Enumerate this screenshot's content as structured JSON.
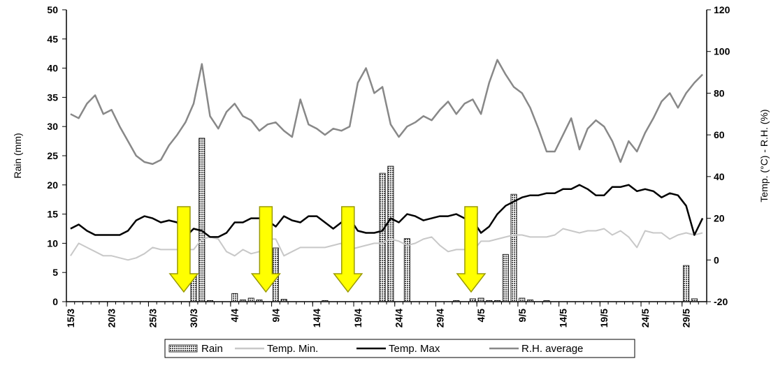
{
  "chart_data": {
    "type": "bar+line",
    "x_tick_labels": [
      "15/3",
      "20/3",
      "25/3",
      "30/3",
      "4/4",
      "9/4",
      "14/4",
      "19/4",
      "24/4",
      "29/4",
      "4/5",
      "9/5",
      "14/5",
      "19/5",
      "24/5",
      "29/5"
    ],
    "left_axis": {
      "label": "Rain (mm)",
      "ylim": [
        0,
        50
      ],
      "ticks": [
        "0",
        "5",
        "10",
        "15",
        "20",
        "25",
        "30",
        "35",
        "40",
        "45",
        "50"
      ]
    },
    "right_axis": {
      "label": "Temp. (°C) - R.H. (%)",
      "ylim": [
        -20,
        120
      ],
      "ticks": [
        "-20",
        "0",
        "20",
        "40",
        "60",
        "80",
        "100",
        "120"
      ]
    },
    "legend": [
      "Rain",
      "Temp. Min.",
      "Temp. Max",
      "R.H. average"
    ],
    "legend_placement": "bottom",
    "days": 78,
    "series": [
      {
        "name": "Rain",
        "kind": "bar",
        "axis": "left",
        "color": "#777777",
        "points": [
          {
            "day": 15,
            "value": 4.8
          },
          {
            "day": 16,
            "value": 28
          },
          {
            "day": 17,
            "value": 0.2
          },
          {
            "day": 20,
            "value": 1.4
          },
          {
            "day": 21,
            "value": 0.3
          },
          {
            "day": 22,
            "value": 0.6
          },
          {
            "day": 23,
            "value": 0.3
          },
          {
            "day": 25,
            "value": 9.2
          },
          {
            "day": 26,
            "value": 0.4
          },
          {
            "day": 31,
            "value": 0.2
          },
          {
            "day": 38,
            "value": 22
          },
          {
            "day": 39,
            "value": 23.2
          },
          {
            "day": 41,
            "value": 10.8
          },
          {
            "day": 47,
            "value": 0.2
          },
          {
            "day": 49,
            "value": 0.5
          },
          {
            "day": 50,
            "value": 0.6
          },
          {
            "day": 51,
            "value": 0.2
          },
          {
            "day": 52,
            "value": 0.2
          },
          {
            "day": 53,
            "value": 8.1
          },
          {
            "day": 54,
            "value": 18.4
          },
          {
            "day": 55,
            "value": 0.6
          },
          {
            "day": 56,
            "value": 0.3
          },
          {
            "day": 58,
            "value": 0.2
          },
          {
            "day": 75,
            "value": 6.2
          },
          {
            "day": 76,
            "value": 0.5
          }
        ]
      },
      {
        "name": "Temp. Min.",
        "kind": "line",
        "axis": "right",
        "color": "#c8c8c8",
        "values": [
          2,
          8,
          6,
          4,
          2,
          2,
          1,
          0,
          1,
          3,
          6,
          5,
          5,
          5,
          5,
          5,
          10,
          11,
          10,
          4,
          2,
          5,
          3,
          4,
          10,
          10,
          2,
          4,
          6,
          6,
          6,
          6,
          7,
          8,
          5,
          6,
          7,
          8,
          8,
          10,
          9,
          7,
          8,
          10,
          11,
          7,
          4,
          5,
          5,
          4,
          9,
          9,
          10,
          11,
          12,
          12,
          11,
          11,
          11,
          12,
          15,
          14,
          13,
          14,
          14,
          15,
          12,
          14,
          11,
          6,
          14,
          13,
          13,
          10,
          12,
          13,
          12,
          13,
          12,
          12,
          12
        ]
      },
      {
        "name": "Temp. Max",
        "kind": "line",
        "axis": "right",
        "color": "#000000",
        "values": [
          15,
          17,
          14,
          12,
          12,
          12,
          12,
          14,
          19,
          21,
          20,
          18,
          19,
          18,
          11,
          15,
          14,
          11,
          11,
          13,
          18,
          18,
          20,
          20,
          19,
          16,
          21,
          19,
          18,
          21,
          21,
          18,
          15,
          18,
          20,
          14,
          13,
          13,
          14,
          20,
          18,
          22,
          21,
          19,
          20,
          21,
          21,
          22,
          20,
          19,
          13,
          16,
          22,
          26,
          28,
          30,
          31,
          31,
          32,
          32,
          34,
          34,
          36,
          34,
          31,
          31,
          35,
          35,
          36,
          33,
          34,
          33,
          30,
          32,
          31,
          26,
          12,
          20,
          26
        ]
      },
      {
        "name": "R.H. average",
        "kind": "line",
        "axis": "right",
        "color": "#888888",
        "values": [
          70,
          68,
          75,
          79,
          70,
          72,
          64,
          57,
          50,
          47,
          46,
          48,
          55,
          60,
          66,
          75,
          94,
          69,
          63,
          71,
          75,
          69,
          67,
          62,
          65,
          66,
          62,
          59,
          77,
          65,
          63,
          60,
          63,
          62,
          64,
          85,
          92,
          80,
          83,
          65,
          59,
          64,
          66,
          69,
          67,
          72,
          76,
          70,
          75,
          77,
          70,
          85,
          96,
          89,
          83,
          80,
          73,
          63,
          52,
          52,
          60,
          68,
          53,
          63,
          67,
          64,
          57,
          47,
          57,
          52,
          61,
          68,
          76,
          80,
          73,
          80,
          85,
          89,
          83,
          81
        ]
      }
    ],
    "annotations": [
      {
        "type": "arrow",
        "color": "#ffff00",
        "stroke": "#9a9a00",
        "direction": "down",
        "day": 14
      },
      {
        "type": "arrow",
        "color": "#ffff00",
        "stroke": "#9a9a00",
        "direction": "down",
        "day": 24
      },
      {
        "type": "arrow",
        "color": "#ffff00",
        "stroke": "#9a9a00",
        "direction": "down",
        "day": 34
      },
      {
        "type": "arrow",
        "color": "#ffff00",
        "stroke": "#9a9a00",
        "direction": "down",
        "day": 49
      }
    ]
  }
}
